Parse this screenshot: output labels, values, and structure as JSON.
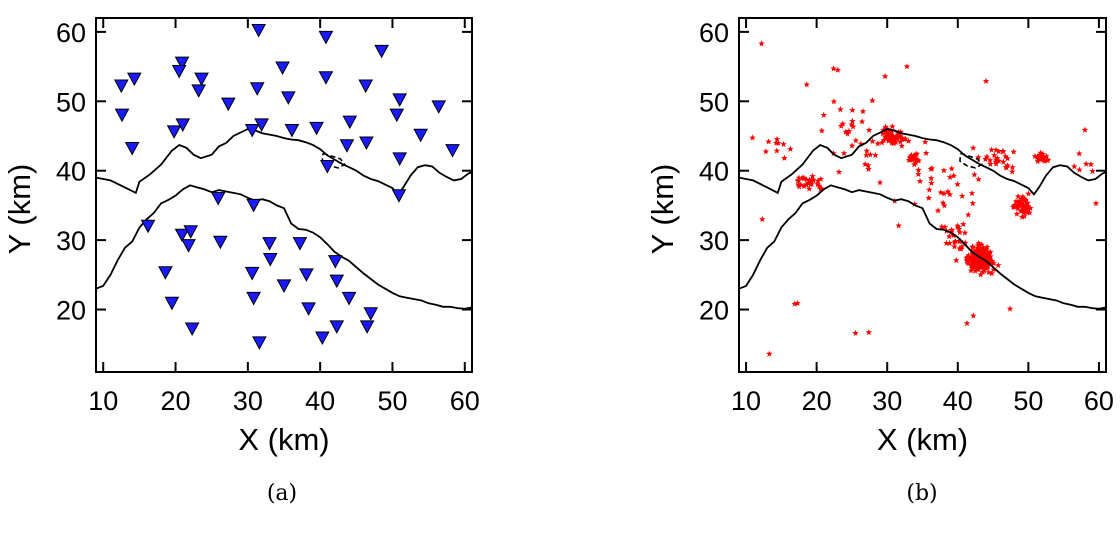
{
  "chart_data": [
    {
      "type": "scatter",
      "caption": "(a)",
      "xlabel": "X (km)",
      "ylabel": "Y (km)",
      "xlim": [
        9,
        61
      ],
      "ylim": [
        11,
        62
      ],
      "xticks": [
        10,
        20,
        30,
        40,
        50,
        60
      ],
      "yticks": [
        20,
        30,
        40,
        50,
        60
      ],
      "marker": "triangle-down",
      "marker_color": "#1a1aff",
      "points": [
        [
          31.5,
          60.2
        ],
        [
          40.8,
          59.2
        ],
        [
          48.5,
          57.2
        ],
        [
          20.9,
          55.5
        ],
        [
          34.8,
          54.8
        ],
        [
          20.5,
          54.3
        ],
        [
          14.3,
          53.2
        ],
        [
          23.6,
          53.2
        ],
        [
          40.8,
          53.4
        ],
        [
          12.5,
          52.2
        ],
        [
          31.3,
          51.8
        ],
        [
          46.3,
          52.2
        ],
        [
          23.2,
          51.5
        ],
        [
          35.6,
          50.5
        ],
        [
          51.0,
          50.2
        ],
        [
          27.3,
          49.6
        ],
        [
          56.4,
          49.2
        ],
        [
          12.6,
          48.0
        ],
        [
          50.6,
          48.0
        ],
        [
          44.1,
          47.0
        ],
        [
          21.0,
          46.6
        ],
        [
          31.9,
          46.6
        ],
        [
          19.8,
          45.6
        ],
        [
          30.6,
          45.8
        ],
        [
          36.1,
          45.8
        ],
        [
          39.5,
          46.1
        ],
        [
          53.9,
          45.1
        ],
        [
          14.0,
          43.2
        ],
        [
          43.7,
          43.6
        ],
        [
          46.4,
          44.0
        ],
        [
          58.3,
          42.9
        ],
        [
          51.0,
          41.7
        ],
        [
          41.0,
          40.6
        ],
        [
          50.9,
          36.4
        ],
        [
          25.9,
          36.0
        ],
        [
          16.2,
          32.0
        ],
        [
          30.8,
          35.0
        ],
        [
          20.9,
          30.7
        ],
        [
          22.1,
          31.2
        ],
        [
          21.8,
          29.2
        ],
        [
          26.2,
          29.7
        ],
        [
          33.0,
          29.5
        ],
        [
          37.2,
          29.5
        ],
        [
          33.1,
          27.2
        ],
        [
          42.1,
          26.9
        ],
        [
          18.6,
          25.3
        ],
        [
          30.6,
          25.2
        ],
        [
          38.1,
          25.0
        ],
        [
          42.3,
          24.1
        ],
        [
          35.0,
          23.4
        ],
        [
          44.0,
          21.6
        ],
        [
          30.8,
          21.6
        ],
        [
          19.5,
          20.9
        ],
        [
          38.4,
          20.1
        ],
        [
          47.0,
          19.4
        ],
        [
          42.3,
          17.5
        ],
        [
          46.5,
          17.5
        ],
        [
          22.3,
          17.2
        ],
        [
          40.3,
          15.9
        ],
        [
          31.6,
          15.2
        ]
      ]
    },
    {
      "type": "scatter",
      "caption": "(b)",
      "xlabel": "X (km)",
      "ylabel": "Y (km)",
      "xlim": [
        9,
        61
      ],
      "ylim": [
        11,
        62
      ],
      "xticks": [
        10,
        20,
        30,
        40,
        50,
        60
      ],
      "yticks": [
        20,
        30,
        40,
        50,
        60
      ],
      "marker": "star",
      "marker_color": "#ff0000"
    }
  ],
  "map_outline_color": "#000000"
}
